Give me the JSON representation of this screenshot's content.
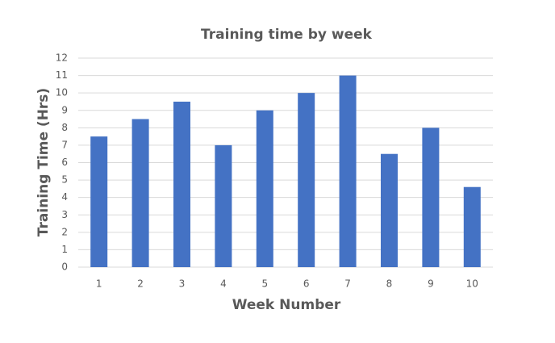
{
  "chart_data": {
    "type": "bar",
    "title": "Training time by week",
    "x_label": "Week Number",
    "y_label": "Training Time (Hrs)",
    "categories": [
      "1",
      "2",
      "3",
      "4",
      "5",
      "6",
      "7",
      "8",
      "9",
      "10"
    ],
    "values": [
      7.5,
      8.5,
      9.5,
      7,
      9,
      10,
      11,
      6.5,
      8,
      4.6
    ],
    "color": "#4472c4",
    "ylim": [
      0,
      12
    ],
    "yticks": [
      0,
      1,
      2,
      3,
      4,
      5,
      6,
      7,
      8,
      9,
      10,
      11,
      12
    ],
    "grid": true
  }
}
